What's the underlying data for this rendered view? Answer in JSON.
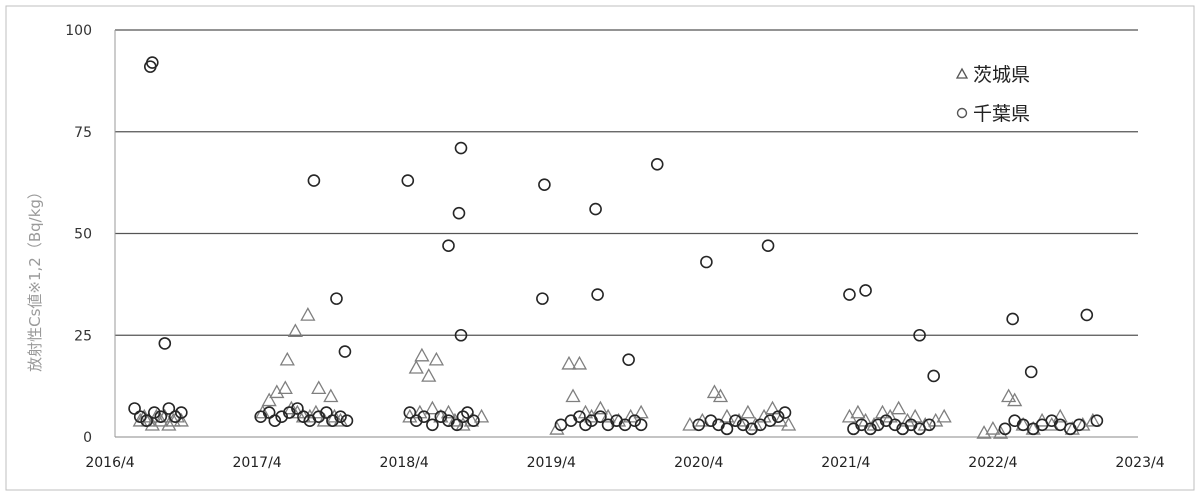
{
  "chart_data": {
    "type": "scatter",
    "title": "",
    "ylabel": "放射性Cs値※1,2（Bq/kg）",
    "xlabel": "",
    "ylim": [
      0,
      100
    ],
    "yticks": [
      0,
      25,
      50,
      75,
      100
    ],
    "xlim": [
      "2016-04",
      "2023-04"
    ],
    "xticks": [
      "2016/4",
      "2017/4",
      "2018/4",
      "2019/4",
      "2020/4",
      "2021/4",
      "2022/4",
      "2023/4"
    ],
    "grid": "horizontal",
    "legend_position": "top-right",
    "series": [
      {
        "name": "茨城県",
        "marker": "triangle",
        "color": "#7f7f7f",
        "points": [
          [
            "2016-06-15",
            4
          ],
          [
            "2016-06-25",
            5
          ],
          [
            "2016-07-05",
            4
          ],
          [
            "2016-07-15",
            3
          ],
          [
            "2016-07-25",
            5
          ],
          [
            "2016-08-05",
            4
          ],
          [
            "2016-08-15",
            5
          ],
          [
            "2016-08-25",
            3
          ],
          [
            "2016-09-05",
            4
          ],
          [
            "2016-09-15",
            5
          ],
          [
            "2016-09-25",
            4
          ],
          [
            "2017-06-15",
            19
          ],
          [
            "2017-07-05",
            26
          ],
          [
            "2017-08-05",
            30
          ],
          [
            "2017-09-01",
            12
          ],
          [
            "2017-10-01",
            10
          ],
          [
            "2017-04-15",
            6
          ],
          [
            "2017-05-01",
            9
          ],
          [
            "2017-05-20",
            11
          ],
          [
            "2017-06-10",
            12
          ],
          [
            "2017-06-25",
            7
          ],
          [
            "2017-07-10",
            6
          ],
          [
            "2017-07-25",
            5
          ],
          [
            "2017-08-10",
            5
          ],
          [
            "2017-08-25",
            6
          ],
          [
            "2017-09-15",
            4
          ],
          [
            "2017-10-10",
            5
          ],
          [
            "2017-10-25",
            4
          ],
          [
            "2018-04-15",
            5
          ],
          [
            "2018-05-01",
            17
          ],
          [
            "2018-05-15",
            20
          ],
          [
            "2018-06-01",
            15
          ],
          [
            "2018-06-20",
            19
          ],
          [
            "2018-05-10",
            6
          ],
          [
            "2018-06-10",
            7
          ],
          [
            "2018-07-01",
            5
          ],
          [
            "2018-07-20",
            6
          ],
          [
            "2018-08-05",
            4
          ],
          [
            "2018-08-25",
            3
          ],
          [
            "2018-09-15",
            4
          ],
          [
            "2018-10-10",
            5
          ],
          [
            "2019-04-15",
            2
          ],
          [
            "2019-05-15",
            18
          ],
          [
            "2019-06-10",
            18
          ],
          [
            "2019-05-25",
            10
          ],
          [
            "2019-06-25",
            6
          ],
          [
            "2019-07-10",
            5
          ],
          [
            "2019-08-01",
            7
          ],
          [
            "2019-08-20",
            5
          ],
          [
            "2019-09-15",
            4
          ],
          [
            "2019-10-15",
            5
          ],
          [
            "2019-11-10",
            6
          ],
          [
            "2020-03-10",
            3
          ],
          [
            "2020-04-10",
            4
          ],
          [
            "2020-05-10",
            11
          ],
          [
            "2020-05-25",
            10
          ],
          [
            "2020-06-10",
            5
          ],
          [
            "2020-07-10",
            4
          ],
          [
            "2020-08-01",
            6
          ],
          [
            "2020-08-20",
            3
          ],
          [
            "2020-09-10",
            5
          ],
          [
            "2020-10-01",
            7
          ],
          [
            "2020-10-20",
            4
          ],
          [
            "2020-11-10",
            3
          ],
          [
            "2021-04-10",
            5
          ],
          [
            "2021-05-01",
            6
          ],
          [
            "2021-05-20",
            4
          ],
          [
            "2021-06-10",
            3
          ],
          [
            "2021-07-01",
            6
          ],
          [
            "2021-07-20",
            5
          ],
          [
            "2021-08-10",
            7
          ],
          [
            "2021-09-01",
            4
          ],
          [
            "2021-09-20",
            5
          ],
          [
            "2021-10-15",
            3
          ],
          [
            "2021-11-10",
            4
          ],
          [
            "2021-12-01",
            5
          ],
          [
            "2022-03-10",
            1
          ],
          [
            "2022-04-01",
            2
          ],
          [
            "2022-04-20",
            1
          ],
          [
            "2022-05-10",
            10
          ],
          [
            "2022-05-25",
            9
          ],
          [
            "2022-06-15",
            3
          ],
          [
            "2022-07-10",
            2
          ],
          [
            "2022-08-01",
            4
          ],
          [
            "2022-08-25",
            3
          ],
          [
            "2022-09-15",
            5
          ],
          [
            "2022-10-15",
            2
          ],
          [
            "2022-11-10",
            3
          ],
          [
            "2022-12-05",
            4
          ]
        ]
      },
      {
        "name": "千葉県",
        "marker": "circle",
        "color": "#262626",
        "points": [
          [
            "2016-07-10",
            91
          ],
          [
            "2016-07-15",
            92
          ],
          [
            "2016-08-15",
            23
          ],
          [
            "2016-06-01",
            7
          ],
          [
            "2016-06-15",
            5
          ],
          [
            "2016-07-01",
            4
          ],
          [
            "2016-07-20",
            6
          ],
          [
            "2016-08-05",
            5
          ],
          [
            "2016-08-25",
            7
          ],
          [
            "2016-09-10",
            5
          ],
          [
            "2016-09-25",
            6
          ],
          [
            "2017-08-20",
            63
          ],
          [
            "2017-10-15",
            34
          ],
          [
            "2017-11-05",
            21
          ],
          [
            "2017-04-10",
            5
          ],
          [
            "2017-05-01",
            6
          ],
          [
            "2017-05-15",
            4
          ],
          [
            "2017-06-01",
            5
          ],
          [
            "2017-06-20",
            6
          ],
          [
            "2017-07-10",
            7
          ],
          [
            "2017-07-25",
            5
          ],
          [
            "2017-08-10",
            4
          ],
          [
            "2017-09-01",
            5
          ],
          [
            "2017-09-20",
            6
          ],
          [
            "2017-10-05",
            4
          ],
          [
            "2017-10-25",
            5
          ],
          [
            "2017-11-10",
            4
          ],
          [
            "2018-04-10",
            63
          ],
          [
            "2018-07-20",
            47
          ],
          [
            "2018-08-15",
            55
          ],
          [
            "2018-08-20",
            71
          ],
          [
            "2018-08-20",
            25
          ],
          [
            "2018-04-15",
            6
          ],
          [
            "2018-05-01",
            4
          ],
          [
            "2018-05-20",
            5
          ],
          [
            "2018-06-10",
            3
          ],
          [
            "2018-07-01",
            5
          ],
          [
            "2018-07-20",
            4
          ],
          [
            "2018-08-10",
            3
          ],
          [
            "2018-08-25",
            5
          ],
          [
            "2018-09-05",
            6
          ],
          [
            "2018-09-20",
            4
          ],
          [
            "2019-03-10",
            34
          ],
          [
            "2019-03-15",
            62
          ],
          [
            "2019-07-20",
            56
          ],
          [
            "2019-07-25",
            35
          ],
          [
            "2019-10-10",
            19
          ],
          [
            "2019-12-20",
            67
          ],
          [
            "2019-04-25",
            3
          ],
          [
            "2019-05-20",
            4
          ],
          [
            "2019-06-10",
            5
          ],
          [
            "2019-06-25",
            3
          ],
          [
            "2019-07-10",
            4
          ],
          [
            "2019-08-01",
            5
          ],
          [
            "2019-08-20",
            3
          ],
          [
            "2019-09-10",
            4
          ],
          [
            "2019-10-01",
            3
          ],
          [
            "2019-10-25",
            4
          ],
          [
            "2019-11-10",
            3
          ],
          [
            "2020-04-20",
            43
          ],
          [
            "2020-09-20",
            47
          ],
          [
            "2020-04-01",
            3
          ],
          [
            "2020-05-01",
            4
          ],
          [
            "2020-05-20",
            3
          ],
          [
            "2020-06-10",
            2
          ],
          [
            "2020-07-01",
            4
          ],
          [
            "2020-07-20",
            3
          ],
          [
            "2020-08-10",
            2
          ],
          [
            "2020-09-01",
            3
          ],
          [
            "2020-09-25",
            4
          ],
          [
            "2020-10-15",
            5
          ],
          [
            "2020-11-01",
            6
          ],
          [
            "2021-04-10",
            35
          ],
          [
            "2021-05-20",
            36
          ],
          [
            "2021-10-01",
            25
          ],
          [
            "2021-11-05",
            15
          ],
          [
            "2021-04-20",
            2
          ],
          [
            "2021-05-10",
            3
          ],
          [
            "2021-06-01",
            2
          ],
          [
            "2021-06-20",
            3
          ],
          [
            "2021-07-10",
            4
          ],
          [
            "2021-08-01",
            3
          ],
          [
            "2021-08-20",
            2
          ],
          [
            "2021-09-10",
            3
          ],
          [
            "2021-10-01",
            2
          ],
          [
            "2021-10-25",
            3
          ],
          [
            "2022-05-20",
            29
          ],
          [
            "2022-07-05",
            16
          ],
          [
            "2022-11-20",
            30
          ],
          [
            "2022-05-01",
            2
          ],
          [
            "2022-05-25",
            4
          ],
          [
            "2022-06-15",
            3
          ],
          [
            "2022-07-10",
            2
          ],
          [
            "2022-08-01",
            3
          ],
          [
            "2022-08-25",
            4
          ],
          [
            "2022-09-15",
            3
          ],
          [
            "2022-10-10",
            2
          ],
          [
            "2022-11-01",
            3
          ],
          [
            "2022-12-15",
            4
          ]
        ]
      }
    ]
  }
}
